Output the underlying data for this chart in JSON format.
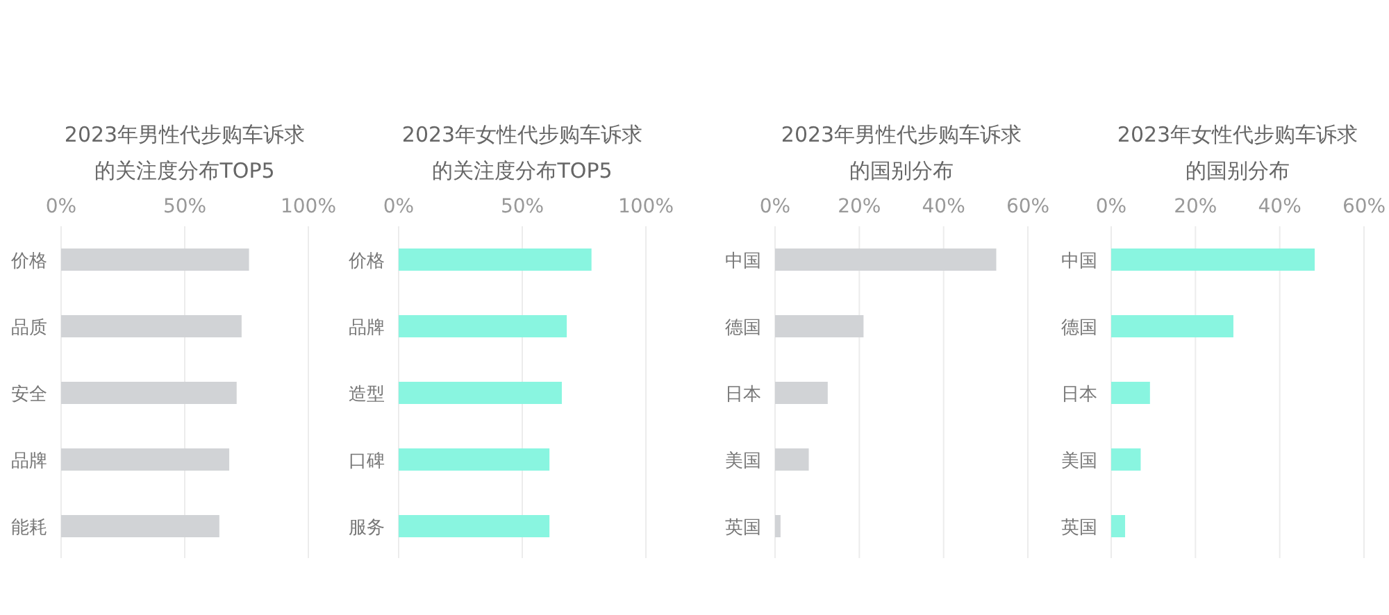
{
  "chart_data": [
    {
      "type": "bar",
      "orientation": "horizontal",
      "title": "2023年男性代步购车诉求的关注度分布TOP5",
      "categories": [
        "价格",
        "品质",
        "安全",
        "品牌",
        "能耗"
      ],
      "values": [
        76,
        73,
        71,
        68,
        64
      ],
      "color": "#d1d3d6",
      "xlim": [
        0,
        100
      ],
      "xticks": [
        {
          "value": 0,
          "label": "0%"
        },
        {
          "value": 50,
          "label": "50%"
        },
        {
          "value": 100,
          "label": "100%"
        }
      ],
      "grid": "x"
    },
    {
      "type": "bar",
      "orientation": "horizontal",
      "title": "2023年女性代步购车诉求的关注度分布TOP5",
      "categories": [
        "价格",
        "品牌",
        "造型",
        "口碑",
        "服务"
      ],
      "values": [
        78,
        68,
        66,
        61,
        61
      ],
      "color": "#89f5e0",
      "xlim": [
        0,
        100
      ],
      "xticks": [
        {
          "value": 0,
          "label": "0%"
        },
        {
          "value": 50,
          "label": "50%"
        },
        {
          "value": 100,
          "label": "100%"
        }
      ],
      "grid": "x"
    },
    {
      "type": "bar",
      "orientation": "horizontal",
      "title": "2023年男性代步购车诉求的国别分布",
      "categories": [
        "中国",
        "德国",
        "日本",
        "美国",
        "英国"
      ],
      "values": [
        52.5,
        21,
        12.5,
        8,
        1.3
      ],
      "color": "#d1d3d6",
      "xlim": [
        0,
        60
      ],
      "xticks": [
        {
          "value": 0,
          "label": "0%"
        },
        {
          "value": 20,
          "label": "20%"
        },
        {
          "value": 40,
          "label": "40%"
        },
        {
          "value": 60,
          "label": "60%"
        }
      ],
      "grid": "x"
    },
    {
      "type": "bar",
      "orientation": "horizontal",
      "title": "2023年女性代步购车诉求的国别分布",
      "categories": [
        "中国",
        "德国",
        "日本",
        "美国",
        "英国"
      ],
      "values": [
        48.3,
        29,
        9.2,
        7,
        3.3
      ],
      "color": "#89f5e0",
      "xlim": [
        0,
        60
      ],
      "xticks": [
        {
          "value": 0,
          "label": "0%"
        },
        {
          "value": 20,
          "label": "20%"
        },
        {
          "value": 40,
          "label": "40%"
        },
        {
          "value": 60,
          "label": "60%"
        }
      ],
      "grid": "x"
    }
  ]
}
